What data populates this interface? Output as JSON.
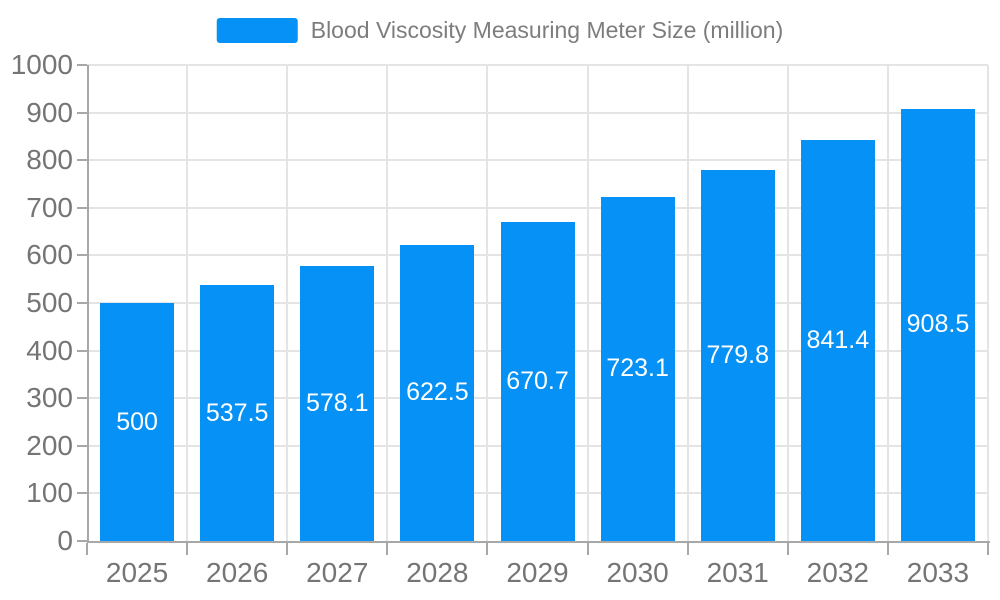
{
  "legend": {
    "label": "Blood Viscosity Measuring Meter Size (million)"
  },
  "colors": {
    "bar": "#0591f5",
    "axis": "#a8a8a8",
    "grid": "#e4e4e4",
    "tick_label": "#757575",
    "legend_text": "#7d7d7d",
    "value_label": "#ffffff",
    "background": "#ffffff"
  },
  "chart_data": {
    "type": "bar",
    "title": "Blood Viscosity Measuring Meter Size (million)",
    "categories": [
      "2025",
      "2026",
      "2027",
      "2028",
      "2029",
      "2030",
      "2031",
      "2032",
      "2033"
    ],
    "values": [
      500,
      537.5,
      578.1,
      622.5,
      670.7,
      723.1,
      779.8,
      841.4,
      908.5
    ],
    "value_label_texts": [
      "500",
      "537.5",
      "578.1",
      "622.5",
      "670.7",
      "723.1",
      "779.8",
      "841.4",
      "908.5"
    ],
    "xlabel": "",
    "ylabel": "",
    "ylim": [
      0,
      1000
    ],
    "ytick_step": 100,
    "ytick_labels": [
      "0",
      "100",
      "200",
      "300",
      "400",
      "500",
      "600",
      "700",
      "800",
      "900",
      "1000"
    ],
    "grid": true,
    "legend_position": "top-center",
    "value_labels_position": "inside-center"
  }
}
